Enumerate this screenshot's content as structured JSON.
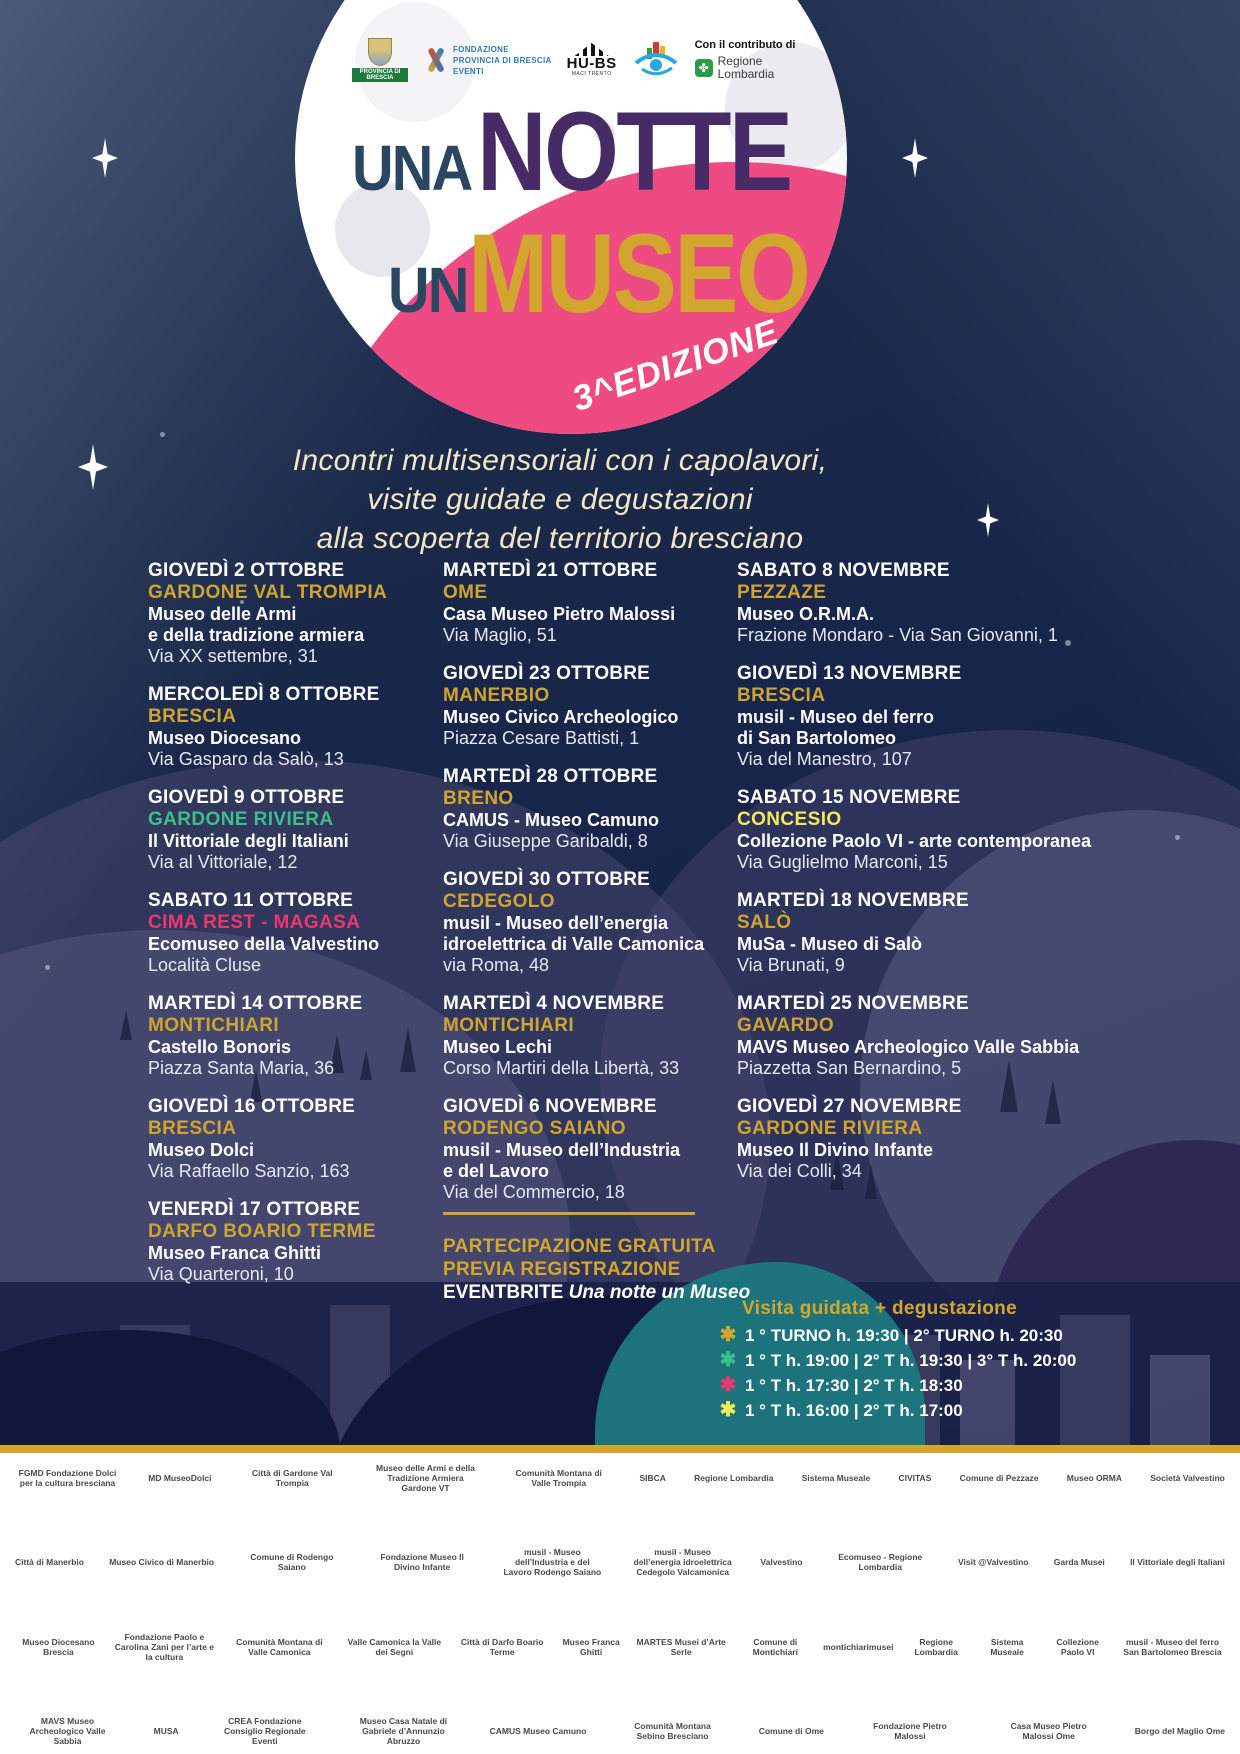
{
  "colors": {
    "background_navy": "#16224a",
    "moon_white": "#ffffff",
    "badge_pink": "#EE4B83",
    "title_blue": "#2A4660",
    "title_purple": "#472B66",
    "title_gold": "#D2A52F",
    "subtitle_cream": "#F4E6C3",
    "location_gold": "#CFA42F",
    "location_green": "#3CBE8E",
    "location_pink": "#E8386F",
    "location_yellow": "#F0EB5A",
    "footer_gold": "#D4A72C"
  },
  "header_logos": {
    "provincia": "PROVINCIA DI BRESCIA",
    "fondazione_lines": [
      "FONDAZIONE",
      "PROVINCIA DI BRESCIA",
      "EVENTI"
    ],
    "hubs": "HU-BS",
    "hubs_sub": "MACI TRENTO",
    "contributo": "Con il contributo di",
    "regione": "Regione Lombardia"
  },
  "title": {
    "una": "UNA",
    "notte": "NOTTE",
    "un": "UN",
    "museo": "MUSEO"
  },
  "edition": "3^EDIZIONE",
  "subtitle": [
    "Incontri multisensoriali con i capolavori,",
    "visite guidate e degustazioni",
    "alla scoperta del territorio bresciano"
  ],
  "events": [
    [
      {
        "date": "GIOVEDÌ 2 OTTOBRE",
        "location": "GARDONE VAL TROMPIA",
        "color": "#CFA42F",
        "lines": [
          "Museo delle Armi",
          "e della tradizione armiera"
        ],
        "address": "Via XX settembre, 31"
      },
      {
        "date": "MERCOLEDÌ 8 OTTOBRE",
        "location": "BRESCIA",
        "color": "#CFA42F",
        "lines": [
          "Museo Diocesano"
        ],
        "address": "Via Gasparo da Salò, 13"
      },
      {
        "date": "GIOVEDÌ 9 OTTOBRE",
        "location": "GARDONE RIVIERA",
        "color": "#3CBE8E",
        "lines": [
          "Il Vittoriale degli Italiani"
        ],
        "address": "Via al Vittoriale, 12"
      },
      {
        "date": "SABATO 11 OTTOBRE",
        "location": "CIMA REST - MAGASA",
        "color": "#E8386F",
        "lines": [
          "Ecomuseo della Valvestino"
        ],
        "address": "Località Cluse"
      },
      {
        "date": "MARTEDÌ 14 OTTOBRE",
        "location": "MONTICHIARI",
        "color": "#CFA42F",
        "lines": [
          "Castello Bonoris"
        ],
        "address": "Piazza Santa Maria, 36"
      },
      {
        "date": "GIOVEDÌ 16 OTTOBRE",
        "location": "BRESCIA",
        "color": "#CFA42F",
        "lines": [
          "Museo Dolci"
        ],
        "address": "Via Raffaello Sanzio, 163"
      },
      {
        "date": "VENERDÌ 17 OTTOBRE",
        "location": "DARFO BOARIO TERME",
        "color": "#CFA42F",
        "lines": [
          "Museo Franca Ghitti"
        ],
        "address": "Via Quarteroni, 10"
      }
    ],
    [
      {
        "date": "MARTEDÌ 21 OTTOBRE",
        "location": "OME",
        "color": "#CFA42F",
        "lines": [
          "Casa Museo Pietro Malossi"
        ],
        "address": "Via Maglio, 51"
      },
      {
        "date": "GIOVEDÌ 23 OTTOBRE",
        "location": "MANERBIO",
        "color": "#CFA42F",
        "lines": [
          "Museo Civico Archeologico"
        ],
        "address": "Piazza Cesare Battisti, 1"
      },
      {
        "date": "MARTEDÌ 28 OTTOBRE",
        "location": "BRENO",
        "color": "#CFA42F",
        "lines": [
          "CAMUS - Museo Camuno"
        ],
        "address": "Via Giuseppe Garibaldi, 8"
      },
      {
        "date": "GIOVEDÌ 30 OTTOBRE",
        "location": "CEDEGOLO",
        "color": "#CFA42F",
        "lines": [
          "musil - Museo dell’energia",
          "idroelettrica di Valle Camonica"
        ],
        "address": "via Roma, 48"
      },
      {
        "date": "MARTEDÌ 4 NOVEMBRE",
        "location": "MONTICHIARI",
        "color": "#CFA42F",
        "lines": [
          "Museo Lechi"
        ],
        "address": "Corso Martiri della Libertà, 33"
      },
      {
        "date": "GIOVEDÌ 6 NOVEMBRE",
        "location": "RODENGO SAIANO",
        "color": "#CFA42F",
        "lines": [
          "musil - Museo dell’Industria",
          "e del Lavoro"
        ],
        "address": "Via del Commercio, 18"
      }
    ],
    [
      {
        "date": "SABATO 8 NOVEMBRE",
        "location": "PEZZAZE",
        "color": "#CFA42F",
        "lines": [
          "Museo O.R.M.A."
        ],
        "address": "Frazione Mondaro - Via San Giovanni, 1"
      },
      {
        "date": "GIOVEDÌ 13 NOVEMBRE",
        "location": "BRESCIA",
        "color": "#CFA42F",
        "lines": [
          "musil - Museo del ferro",
          "di San Bartolomeo"
        ],
        "address": "Via del Manestro, 107"
      },
      {
        "date": "SABATO 15 NOVEMBRE",
        "location": "CONCESIO",
        "color": "#F0EB5A",
        "lines": [
          "Collezione Paolo VI - arte contemporanea"
        ],
        "address": "Via Guglielmo Marconi, 15"
      },
      {
        "date": "MARTEDÌ 18 NOVEMBRE",
        "location": "SALÒ",
        "color": "#CFA42F",
        "lines": [
          "MuSa - Museo di Salò"
        ],
        "address": "Via Brunati, 9"
      },
      {
        "date": "MARTEDÌ 25 NOVEMBRE",
        "location": "GAVARDO",
        "color": "#CFA42F",
        "lines": [
          "MAVS Museo Archeologico Valle Sabbia"
        ],
        "address": "Piazzetta San Bernardino, 5"
      },
      {
        "date": "GIOVEDÌ 27 NOVEMBRE",
        "location": "GARDONE RIVIERA",
        "color": "#CFA42F",
        "lines": [
          "Museo Il Divino Infante"
        ],
        "address": "Via dei Colli, 34"
      }
    ]
  ],
  "registration": {
    "line1": "PARTECIPAZIONE GRATUITA",
    "line2": "PREVIA REGISTRAZIONE",
    "line3_bold": "EVENTBRITE",
    "line3_italic": "Una notte un Museo"
  },
  "legend": {
    "title": "Visita guidata + degustazione",
    "star_glyph": "✱",
    "rows": [
      {
        "color": "#D5A62D",
        "text": "1 ° TURNO h. 19:30 | 2° TURNO h. 20:30"
      },
      {
        "color": "#3CBE8E",
        "text": "1 ° T h. 19:00 | 2° T h. 19:30 | 3° T h. 20:00"
      },
      {
        "color": "#E8386F",
        "text": "1 ° T h. 17:30 | 2° T h. 18:30"
      },
      {
        "color": "#F0EB5A",
        "text": "1 ° T h. 16:00 | 2° T h. 17:00"
      }
    ]
  },
  "footer_rows": [
    [
      "FGMD Fondazione Dolci per la cultura bresciana",
      "MD MuseoDolci",
      "Città di Gardone Val Trompia",
      "Museo delle Armi e della Tradizione Armiera Gardone VT",
      "Comunità Montana di Valle Trompia",
      "SIBCA",
      "Regione Lombardia",
      "Sistema Museale",
      "CIVITAS",
      "Comune di Pezzaze",
      "Museo ORMA",
      "Società Valvestino"
    ],
    [
      "Città di Manerbio",
      "Museo Civico di Manerbio",
      "Comune di Rodengo Saiano",
      "Fondazione Museo Il Divino Infante",
      "musil - Museo dell’Industria e del Lavoro Rodengo Saiano",
      "musil - Museo dell’energia idroelettrica Cedegolo Valcamonica",
      "Valvestino",
      "Ecomuseo - Regione Lombardia",
      "Visit @Valvestino",
      "Garda Musei",
      "Il Vittoriale degli Italiani"
    ],
    [
      "Museo Diocesano Brescia",
      "Fondazione Paolo e Carolina Zani per l’arte e la cultura",
      "Comunità Montana di Valle Camonica",
      "Valle Camonica la Valle dei Segni",
      "Città di Darfo Boario Terme",
      "Museo Franca Ghitti",
      "MARTES Musei d’Arte Serle",
      "Comune di Montichiari",
      "montichiarimusei",
      "Regione Lombardia",
      "Sistema Museale",
      "Collezione Paolo VI",
      "musil - Museo del ferro San Bartolomeo Brescia"
    ],
    [
      "MAVS Museo Archeologico Valle Sabbia",
      "MUSA",
      "CREA Fondazione Consiglio Regionale Eventi",
      "Museo Casa Natale di Gabriele d’Annunzio Abruzzo",
      "CAMUS Museo Camuno",
      "Comunità Montana Sebino Bresciano",
      "Comune di Ome",
      "Fondazione Pietro Malossi",
      "Casa Museo Pietro Malossi Ome",
      "Borgo del Maglio Ome"
    ]
  ]
}
